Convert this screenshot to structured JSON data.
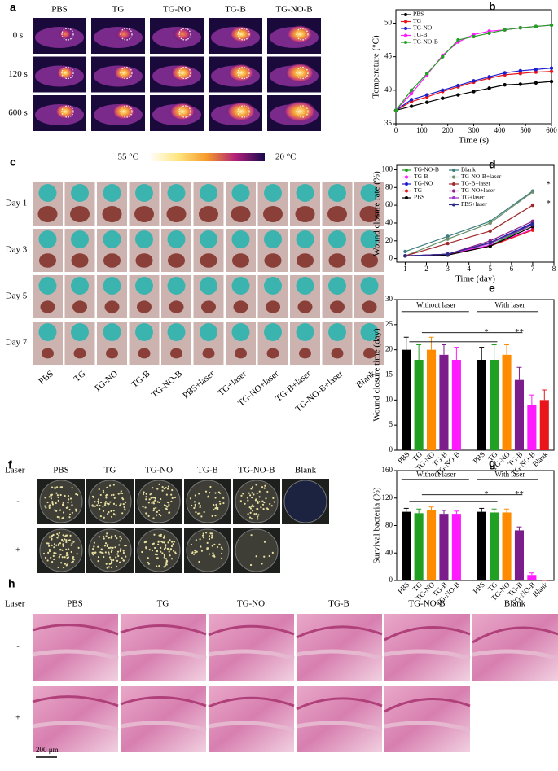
{
  "panel_labels": [
    "a",
    "b",
    "c",
    "d",
    "e",
    "f",
    "g",
    "h"
  ],
  "thermal": {
    "columns": [
      "PBS",
      "TG",
      "TG-NO",
      "TG-B",
      "TG-NO-B"
    ],
    "rows": [
      "0 s",
      "120 s",
      "600 s"
    ],
    "colorbar": [
      "55 °C",
      "20 °C"
    ]
  },
  "wound": {
    "rows": [
      "Day 1",
      "Day 3",
      "Day 5",
      "Day 7"
    ],
    "columns": [
      "PBS",
      "TG",
      "TG-NO",
      "TG-B",
      "TG-NO-B",
      "PBS+laser",
      "TG+laser",
      "TG-NO+laser",
      "TG-B+laser",
      "TG-NO-B+laser",
      "Blank"
    ]
  },
  "plates": {
    "laser_label": "Laser",
    "rows": [
      "-",
      "+"
    ],
    "columns": [
      "PBS",
      "TG",
      "TG-NO",
      "TG-B",
      "TG-NO-B",
      "Blank"
    ]
  },
  "histology": {
    "laser_label": "Laser",
    "rows": [
      "-",
      "+"
    ],
    "columns": [
      "PBS",
      "TG",
      "TG-NO",
      "TG-B",
      "TG-NO-B",
      "Blank"
    ],
    "scale_bar": "200 μm"
  },
  "chart_data": [
    {
      "type": "line",
      "xlabel": "Time (s)",
      "ylabel": "Temperature (°C)",
      "x": [
        0,
        60,
        120,
        180,
        240,
        300,
        360,
        420,
        480,
        540,
        600
      ],
      "xlim": [
        0,
        600
      ],
      "xticks": [
        0,
        100,
        200,
        300,
        400,
        500,
        600
      ],
      "ylim": [
        35,
        52
      ],
      "yticks": [
        35,
        40,
        45,
        50
      ],
      "legend": "upper left",
      "series": [
        {
          "name": "PBS",
          "color": "#000000",
          "values": [
            37,
            37.6,
            38.2,
            38.8,
            39.3,
            39.8,
            40.3,
            40.8,
            40.9,
            41.1,
            41.3
          ]
        },
        {
          "name": "TG",
          "color": "#e8161b",
          "values": [
            37,
            38.3,
            39.0,
            39.8,
            40.5,
            41.2,
            41.8,
            42.3,
            42.5,
            42.7,
            42.8
          ]
        },
        {
          "name": "TG-NO",
          "color": "#1c1ccf",
          "values": [
            37,
            38.6,
            39.3,
            40.0,
            40.7,
            41.4,
            42.0,
            42.6,
            42.9,
            43.1,
            43.3
          ]
        },
        {
          "name": "TG-B",
          "color": "#ff1aff",
          "values": [
            37,
            39.5,
            42.3,
            45.2,
            47.2,
            48.3,
            48.8,
            49.0,
            49.3,
            49.5,
            49.7
          ]
        },
        {
          "name": "TG-NO-B",
          "color": "#22a022",
          "values": [
            37,
            40.0,
            42.5,
            45.0,
            47.5,
            48.0,
            48.5,
            49.0,
            49.3,
            49.5,
            49.7
          ]
        }
      ]
    },
    {
      "type": "line",
      "xlabel": "Time (day)",
      "ylabel": "Wound closure rate (%)",
      "x": [
        1,
        3,
        5,
        7
      ],
      "xlim": [
        0.6,
        8
      ],
      "xticks": [
        1,
        2,
        3,
        4,
        5,
        6,
        7,
        8
      ],
      "ylim": [
        -4,
        105
      ],
      "yticks": [
        0,
        20,
        40,
        60,
        80,
        100
      ],
      "legend": "upper left",
      "legend_columns": 2,
      "annotations": [
        "*",
        "*"
      ],
      "series": [
        {
          "name": "TG-NO-B",
          "color": "#22a022",
          "values": [
            3,
            5,
            15,
            38
          ]
        },
        {
          "name": "TG-B",
          "color": "#ff1aff",
          "values": [
            3,
            5,
            15,
            33
          ]
        },
        {
          "name": "TG-NO",
          "color": "#1c1ccf",
          "values": [
            3,
            5,
            18,
            40
          ]
        },
        {
          "name": "TG",
          "color": "#e8161b",
          "values": [
            3,
            4,
            14,
            32
          ]
        },
        {
          "name": "PBS",
          "color": "#000000",
          "values": [
            3,
            4,
            14,
            36
          ]
        },
        {
          "name": "Blank",
          "color": "#3d7f7f",
          "values": [
            8,
            25,
            42,
            76
          ]
        },
        {
          "name": "TG-NO-B+laser",
          "color": "#6b8e6b",
          "values": [
            3,
            22,
            40,
            75
          ]
        },
        {
          "name": "TG-B+laser",
          "color": "#a0282a",
          "values": [
            3,
            17,
            31,
            60
          ]
        },
        {
          "name": "TG-NO+laser",
          "color": "#8a1f8a",
          "values": [
            3,
            5,
            20,
            42
          ]
        },
        {
          "name": "TG+laser",
          "color": "#9933cc",
          "values": [
            3,
            5,
            17,
            38
          ]
        },
        {
          "name": "PBS+laser",
          "color": "#2a2a8a",
          "values": [
            3,
            5,
            18,
            39
          ]
        }
      ]
    },
    {
      "type": "bar",
      "ylabel": "Wound closure time (day)",
      "categories": [
        "PBS",
        "TG",
        "TG-NO",
        "TG-B",
        "TG-NO-B",
        null,
        "PBS",
        "TG",
        "TG-NO",
        "TG-B",
        "TG-NO-B",
        "Blank"
      ],
      "values": [
        20,
        18,
        20,
        19,
        18,
        null,
        18,
        18,
        19,
        14,
        9,
        10
      ],
      "errors": [
        2.5,
        3,
        2.5,
        2,
        2.5,
        null,
        2.5,
        3,
        2,
        2.5,
        2,
        2
      ],
      "colors": [
        "#000000",
        "#22a022",
        "#ff8c00",
        "#7b1e8c",
        "#ff1aff",
        null,
        "#000000",
        "#22a022",
        "#ff8c00",
        "#7b1e8c",
        "#ff1aff",
        "#e8161b"
      ],
      "ylim": [
        0,
        30
      ],
      "yticks": [
        0,
        5,
        10,
        15,
        20,
        25,
        30
      ],
      "annotations": [
        "Without laser",
        "With laser",
        "*",
        "**"
      ]
    },
    {
      "type": "bar",
      "ylabel": "Survival bacteria (%)",
      "categories": [
        "PBS",
        "TG",
        "TG-NO",
        "TG-B",
        "TG-NO-B",
        null,
        "PBS",
        "TG",
        "TG-NO",
        "TG-B",
        "TG-NO-B",
        "Blank"
      ],
      "values": [
        100,
        98,
        102,
        97,
        97,
        null,
        100,
        99,
        99,
        73,
        8,
        0
      ],
      "errors": [
        5,
        6,
        5,
        5,
        4,
        null,
        5,
        5,
        5,
        5,
        3,
        0
      ],
      "colors": [
        "#000000",
        "#22a022",
        "#ff8c00",
        "#7b1e8c",
        "#ff1aff",
        null,
        "#000000",
        "#22a022",
        "#ff8c00",
        "#7b1e8c",
        "#ff1aff",
        "#e8161b"
      ],
      "ylim": [
        0,
        160
      ],
      "yticks": [
        0,
        40,
        80,
        120,
        160
      ],
      "annotations": [
        "Without laser",
        "With laser",
        "*",
        "**"
      ]
    }
  ]
}
